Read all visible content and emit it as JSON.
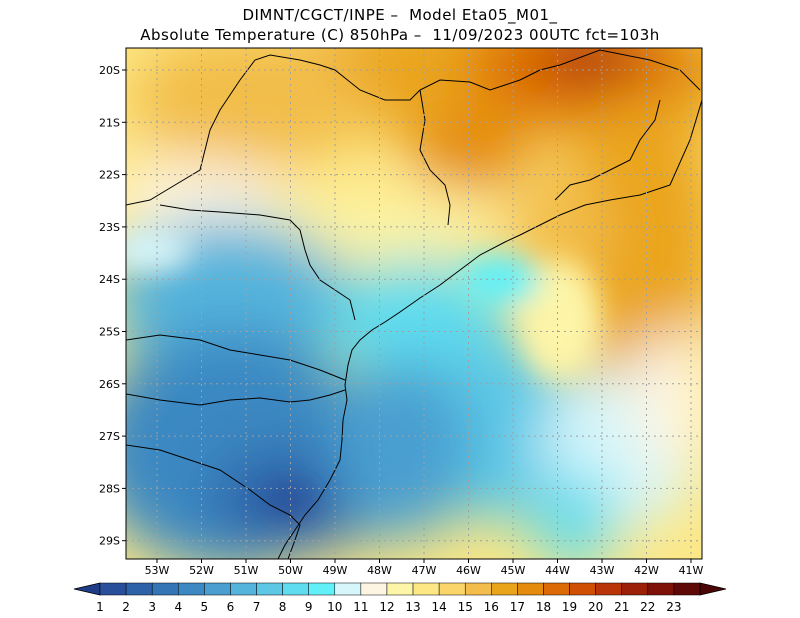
{
  "title": {
    "line1": "DIMNT/CGCT/INPE –  Model Eta05_M01_",
    "line2": "Absolute Temperature (C) 850hPa –  11/09/2023 00UTC fct=103h"
  },
  "axes": {
    "lat_labels": [
      "20S",
      "21S",
      "22S",
      "23S",
      "24S",
      "25S",
      "26S",
      "27S",
      "28S",
      "29S"
    ],
    "lon_labels": [
      "53W",
      "52W",
      "51W",
      "50W",
      "49W",
      "48W",
      "47W",
      "46W",
      "45W",
      "44W",
      "43W",
      "42W",
      "41W"
    ]
  },
  "colorbar": {
    "labels": [
      "1",
      "2",
      "3",
      "4",
      "5",
      "6",
      "7",
      "8",
      "9",
      "10",
      "11",
      "12",
      "13",
      "14",
      "15",
      "16",
      "17",
      "18",
      "19",
      "20",
      "21",
      "22",
      "23"
    ],
    "colors": [
      "#2a4f9a",
      "#2e62a8",
      "#3475b6",
      "#3b88c2",
      "#4a9fd0",
      "#55b4dc",
      "#5cc8e6",
      "#5fdcef",
      "#62f0f8",
      "#d6f6fb",
      "#fdf5e1",
      "#fdf5a8",
      "#fde784",
      "#f9d56a",
      "#f2bd4a",
      "#eaa41c",
      "#e48a0c",
      "#dc6a06",
      "#cf5005",
      "#b93507",
      "#9c1f08",
      "#7e1108",
      "#5e0807"
    ],
    "low_extend": "#1e3c88",
    "high_extend": "#4a0505"
  },
  "chart_data": {
    "type": "heatmap",
    "title": "Absolute Temperature (C) 850hPa",
    "x_ticks": [
      "53W",
      "52W",
      "51W",
      "50W",
      "49W",
      "48W",
      "47W",
      "46W",
      "45W",
      "44W",
      "43W",
      "42W",
      "41W"
    ],
    "y_ticks": [
      "20S",
      "21S",
      "22S",
      "23S",
      "24S",
      "25S",
      "26S",
      "27S",
      "28S",
      "29S"
    ],
    "xlim": [
      -53.5,
      -40.5
    ],
    "ylim": [
      -29.4,
      -19.6
    ],
    "grid": true,
    "value_range": [
      1,
      23
    ],
    "centers": [
      {
        "lon": -43.0,
        "lat": -20.0,
        "value": 21
      },
      {
        "lon": -46.5,
        "lat": -21.5,
        "value": 17
      },
      {
        "lon": -41.5,
        "lat": -23.0,
        "value": 17
      },
      {
        "lon": -51.5,
        "lat": -21.0,
        "value": 15
      },
      {
        "lon": -52.5,
        "lat": -22.5,
        "value": 12
      },
      {
        "lon": -49.5,
        "lat": -25.0,
        "value": 6
      },
      {
        "lon": -50.0,
        "lat": -28.2,
        "value": 3
      },
      {
        "lon": -52.5,
        "lat": -27.0,
        "value": 5
      },
      {
        "lon": -46.0,
        "lat": -25.5,
        "value": 8
      },
      {
        "lon": -44.5,
        "lat": -27.5,
        "value": 7
      },
      {
        "lon": -42.0,
        "lat": -27.5,
        "value": 12
      }
    ]
  }
}
